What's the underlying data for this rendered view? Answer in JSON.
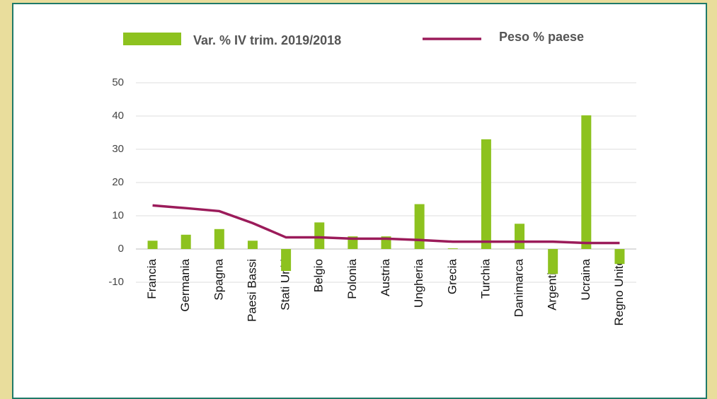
{
  "chart_data": {
    "type": "bar",
    "categories": [
      "Francia",
      "Germania",
      "Spagna",
      "Paesi Bassi",
      "Stati Uniti",
      "Belgio",
      "Polonia",
      "Austria",
      "Ungheria",
      "Grecia",
      "Turchia",
      "Danimarca",
      "Argentina",
      "Ucraina",
      "Regno Unito"
    ],
    "series": [
      {
        "name": "Var. % IV trim. 2019/2018",
        "type": "bar",
        "color": "#8dc21f",
        "values": [
          2.5,
          4.3,
          6,
          2.5,
          -6.6,
          8,
          3.8,
          3.8,
          13.5,
          0.2,
          33,
          7.6,
          -7.5,
          40.2,
          -4.5
        ]
      },
      {
        "name": "Peso % paese",
        "type": "line",
        "color": "#9b1b5a",
        "values": [
          13.1,
          12.3,
          11.4,
          7.8,
          3.5,
          3.5,
          3.1,
          3.1,
          2.7,
          2.2,
          2.2,
          2.2,
          2.2,
          1.8,
          1.8
        ]
      }
    ],
    "ylim": [
      -10,
      50
    ],
    "yticks": [
      -10,
      0,
      10,
      20,
      30,
      40,
      50
    ],
    "grid": true,
    "legend": "top"
  }
}
